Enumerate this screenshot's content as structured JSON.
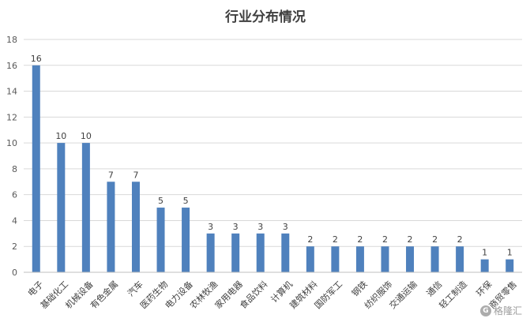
{
  "chart_data": {
    "type": "bar",
    "title": "行业分布情况",
    "xlabel": "",
    "ylabel": "",
    "ylim": [
      0,
      18
    ],
    "yticks": [
      0,
      2,
      4,
      6,
      8,
      10,
      12,
      14,
      16,
      18
    ],
    "grid": true,
    "legend": "none",
    "bar_color": "#4f81bd",
    "categories": [
      "电子",
      "基础化工",
      "机械设备",
      "有色金属",
      "汽车",
      "医药生物",
      "电力设备",
      "农林牧渔",
      "家用电器",
      "食品饮料",
      "计算机",
      "建筑材料",
      "国防军工",
      "钢铁",
      "纺织服饰",
      "交通运输",
      "通信",
      "轻工制造",
      "环保",
      "商贸零售"
    ],
    "values": [
      16,
      10,
      10,
      7,
      7,
      5,
      5,
      3,
      3,
      3,
      3,
      2,
      2,
      2,
      2,
      2,
      2,
      2,
      1,
      1
    ]
  },
  "watermark": {
    "icon": "G",
    "text": "格隆汇"
  }
}
